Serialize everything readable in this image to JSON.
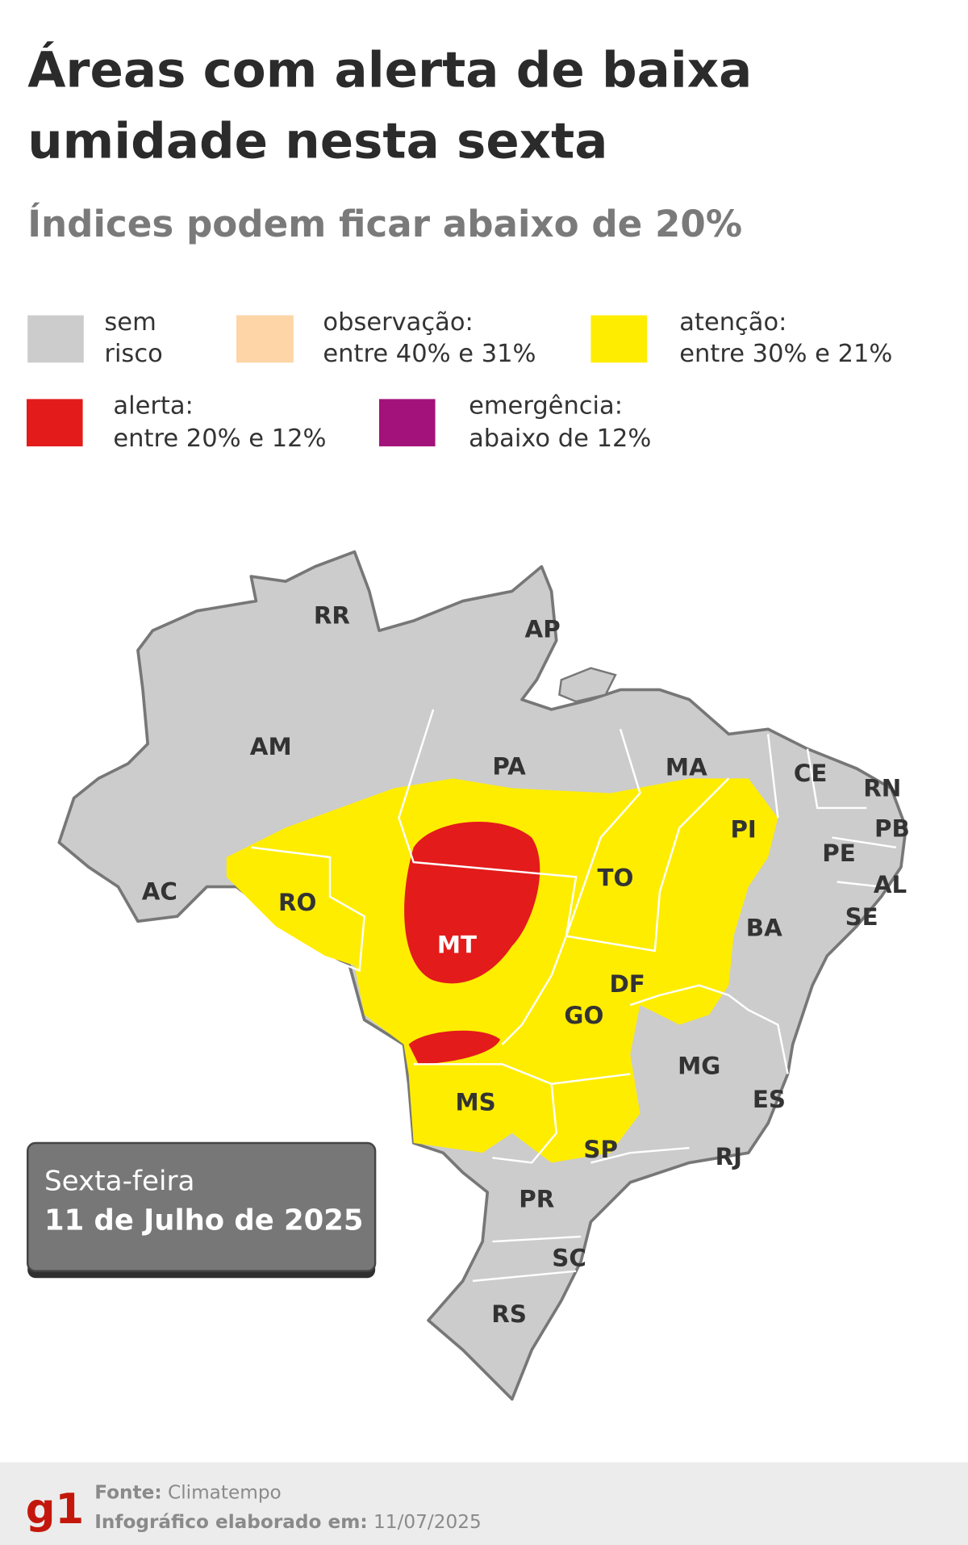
{
  "header": {
    "title": [
      "Áreas com alerta de baixa",
      "umidade nesta sexta"
    ],
    "subtitle": "Índices podem ficar abaixo de 20%"
  },
  "legend": [
    {
      "lines": [
        "sem",
        "risco"
      ],
      "color": "#cccccc"
    },
    {
      "lines": [
        "observação:",
        "entre 40% e 31%"
      ],
      "color": "#fdd5a6"
    },
    {
      "lines": [
        "atenção:",
        "entre 30% e 21%"
      ],
      "color": "#ffed00"
    },
    {
      "lines": [
        "alerta:",
        "entre 20% e 12%"
      ],
      "color": "#e31b1b"
    },
    {
      "lines": [
        "emergência:",
        "abaixo de 12%"
      ],
      "color": "#a3127a"
    }
  ],
  "states": [
    "RR",
    "AP",
    "AM",
    "PA",
    "MA",
    "CE",
    "RN",
    "PB",
    "PI",
    "PE",
    "AL",
    "SE",
    "AC",
    "RO",
    "MT",
    "TO",
    "BA",
    "DF",
    "GO",
    "MG",
    "ES",
    "MS",
    "SP",
    "RJ",
    "PR",
    "SC",
    "RS"
  ],
  "date_box": [
    "Sexta-feira",
    "11 de Julho de 2025"
  ],
  "footer": {
    "logo": "g1",
    "source_label": "Fonte:",
    "source": "Climatempo",
    "date_label": "Infográfico elaborado em:",
    "date": "11/07/2025"
  }
}
